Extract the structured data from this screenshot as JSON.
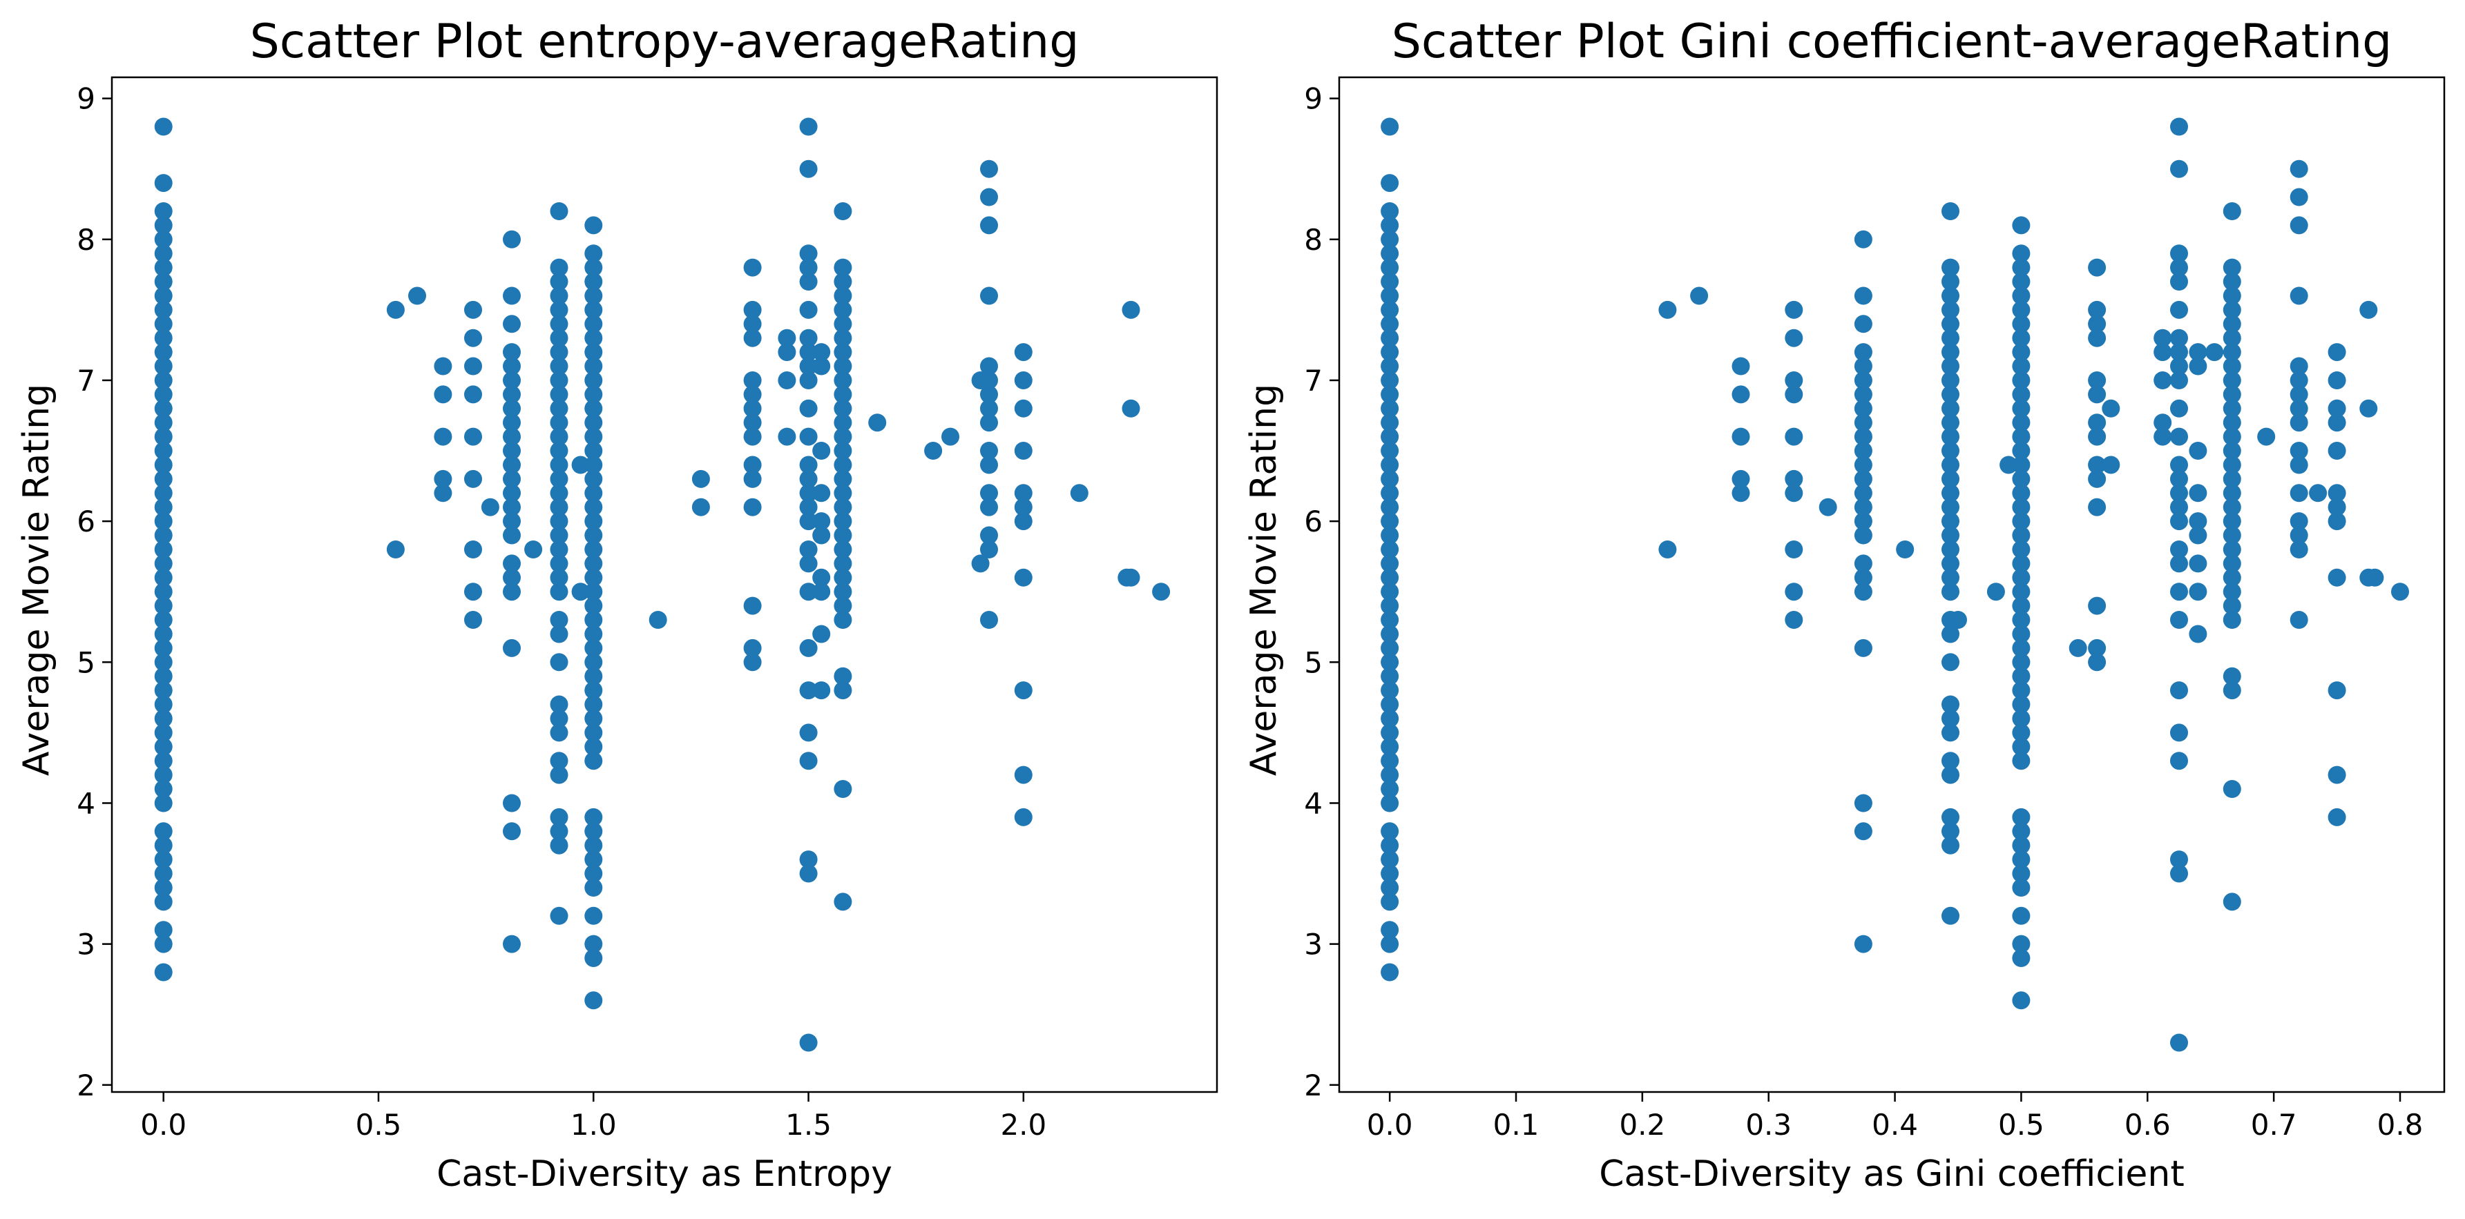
{
  "colors": {
    "marker": "#1f77b4",
    "axes": "#000000",
    "background": "#ffffff"
  },
  "chart_data": [
    {
      "type": "scatter",
      "title": "Scatter Plot entropy-averageRating",
      "xlabel": "Cast-Diversity as Entropy",
      "ylabel": "Average Movie Rating",
      "xlim": [
        -0.12,
        2.45
      ],
      "ylim": [
        1.95,
        9.15
      ],
      "xticks": [
        0.0,
        0.5,
        1.0,
        1.5,
        2.0
      ],
      "xtick_labels": [
        "0.0",
        "0.5",
        "1.0",
        "1.5",
        "2.0"
      ],
      "yticks": [
        2,
        3,
        4,
        5,
        6,
        7,
        8,
        9
      ],
      "ytick_labels": [
        "2",
        "3",
        "4",
        "5",
        "6",
        "7",
        "8",
        "9"
      ],
      "grid": false,
      "columns": [
        {
          "x": 0.0,
          "y": [
            2.8,
            3.0,
            3.1,
            3.3,
            3.4,
            3.5,
            3.6,
            3.7,
            3.8,
            4.0,
            4.1,
            4.2,
            4.3,
            4.4,
            4.5,
            4.6,
            4.7,
            4.8,
            4.9,
            5.0,
            5.1,
            5.2,
            5.3,
            5.4,
            5.5,
            5.6,
            5.7,
            5.8,
            5.9,
            6.0,
            6.1,
            6.2,
            6.3,
            6.4,
            6.5,
            6.6,
            6.7,
            6.8,
            6.9,
            7.0,
            7.1,
            7.2,
            7.3,
            7.4,
            7.5,
            7.6,
            7.7,
            7.8,
            7.9,
            8.0,
            8.1,
            8.2,
            8.4,
            8.8
          ]
        },
        {
          "x": 0.54,
          "y": [
            5.8,
            7.5
          ]
        },
        {
          "x": 0.59,
          "y": [
            7.6
          ]
        },
        {
          "x": 0.65,
          "y": [
            6.2,
            6.3,
            6.6,
            6.9,
            7.1
          ]
        },
        {
          "x": 0.72,
          "y": [
            5.3,
            5.5,
            5.8,
            6.3,
            6.6,
            6.9,
            7.1,
            7.3,
            7.5
          ]
        },
        {
          "x": 0.76,
          "y": [
            6.1
          ]
        },
        {
          "x": 0.81,
          "y": [
            3.0,
            3.8,
            4.0,
            5.1,
            5.5,
            5.6,
            5.7,
            5.9,
            6.0,
            6.1,
            6.2,
            6.3,
            6.4,
            6.5,
            6.6,
            6.7,
            6.8,
            6.9,
            7.0,
            7.1,
            7.2,
            7.4,
            7.6,
            8.0
          ]
        },
        {
          "x": 0.86,
          "y": [
            5.8
          ]
        },
        {
          "x": 0.92,
          "y": [
            3.2,
            3.7,
            3.8,
            3.9,
            4.2,
            4.3,
            4.5,
            4.6,
            4.7,
            5.0,
            5.2,
            5.3,
            5.5,
            5.6,
            5.7,
            5.8,
            5.9,
            6.0,
            6.1,
            6.2,
            6.3,
            6.4,
            6.5,
            6.6,
            6.7,
            6.8,
            6.9,
            7.0,
            7.1,
            7.2,
            7.3,
            7.4,
            7.5,
            7.6,
            7.7,
            7.8,
            8.2
          ]
        },
        {
          "x": 0.97,
          "y": [
            5.5,
            6.4
          ]
        },
        {
          "x": 1.0,
          "y": [
            2.6,
            2.9,
            3.0,
            3.2,
            3.4,
            3.5,
            3.6,
            3.7,
            3.8,
            3.9,
            4.3,
            4.4,
            4.5,
            4.6,
            4.7,
            4.8,
            4.9,
            5.0,
            5.1,
            5.2,
            5.3,
            5.4,
            5.5,
            5.6,
            5.7,
            5.8,
            5.9,
            6.0,
            6.1,
            6.2,
            6.3,
            6.4,
            6.5,
            6.6,
            6.7,
            6.8,
            6.9,
            7.0,
            7.1,
            7.2,
            7.3,
            7.4,
            7.5,
            7.6,
            7.7,
            7.8,
            7.9,
            8.1
          ]
        },
        {
          "x": 1.15,
          "y": [
            5.3
          ]
        },
        {
          "x": 1.25,
          "y": [
            6.1,
            6.3
          ]
        },
        {
          "x": 1.37,
          "y": [
            5.0,
            5.1,
            5.4,
            6.1,
            6.3,
            6.4,
            6.6,
            6.7,
            6.8,
            6.9,
            7.0,
            7.3,
            7.4,
            7.5,
            7.8
          ]
        },
        {
          "x": 1.45,
          "y": [
            6.6,
            7.0,
            7.2,
            7.3
          ]
        },
        {
          "x": 1.5,
          "y": [
            2.3,
            3.5,
            3.6,
            4.3,
            4.5,
            4.8,
            5.1,
            5.5,
            5.7,
            5.8,
            6.0,
            6.1,
            6.2,
            6.3,
            6.4,
            6.6,
            6.8,
            7.0,
            7.1,
            7.2,
            7.3,
            7.5,
            7.7,
            7.8,
            7.9,
            8.5,
            8.8
          ]
        },
        {
          "x": 1.53,
          "y": [
            4.8,
            5.2,
            5.5,
            5.6,
            5.9,
            6.0,
            6.2,
            6.5,
            7.1,
            7.2
          ]
        },
        {
          "x": 1.58,
          "y": [
            3.3,
            4.1,
            4.8,
            4.9,
            5.3,
            5.4,
            5.5,
            5.6,
            5.7,
            5.8,
            5.9,
            6.0,
            6.1,
            6.2,
            6.3,
            6.4,
            6.5,
            6.6,
            6.7,
            6.8,
            6.9,
            7.0,
            7.1,
            7.2,
            7.3,
            7.4,
            7.5,
            7.6,
            7.7,
            7.8,
            8.2
          ]
        },
        {
          "x": 1.66,
          "y": [
            6.7
          ]
        },
        {
          "x": 1.79,
          "y": [
            6.5
          ]
        },
        {
          "x": 1.83,
          "y": [
            6.6
          ]
        },
        {
          "x": 1.9,
          "y": [
            5.7,
            7.0
          ]
        },
        {
          "x": 1.92,
          "y": [
            5.3,
            5.8,
            5.9,
            6.1,
            6.2,
            6.4,
            6.5,
            6.7,
            6.8,
            6.9,
            7.0,
            7.1,
            7.6,
            8.1,
            8.3,
            8.5
          ]
        },
        {
          "x": 2.0,
          "y": [
            3.9,
            4.2,
            4.8,
            5.6,
            6.0,
            6.1,
            6.2,
            6.5,
            6.8,
            7.0,
            7.2
          ]
        },
        {
          "x": 2.13,
          "y": [
            6.2
          ]
        },
        {
          "x": 2.24,
          "y": [
            5.6
          ]
        },
        {
          "x": 2.25,
          "y": [
            5.6,
            6.8,
            7.5
          ]
        },
        {
          "x": 2.32,
          "y": [
            5.5
          ]
        }
      ]
    },
    {
      "type": "scatter",
      "title": "Scatter Plot Gini coefficient-averageRating",
      "xlabel": "Cast-Diversity as Gini coefficient",
      "ylabel": "Average Movie Rating",
      "xlim": [
        -0.04,
        0.835
      ],
      "ylim": [
        1.95,
        9.15
      ],
      "xticks": [
        0.0,
        0.1,
        0.2,
        0.3,
        0.4,
        0.5,
        0.6,
        0.7,
        0.8
      ],
      "xtick_labels": [
        "0.0",
        "0.1",
        "0.2",
        "0.3",
        "0.4",
        "0.5",
        "0.6",
        "0.7",
        "0.8"
      ],
      "yticks": [
        2,
        3,
        4,
        5,
        6,
        7,
        8,
        9
      ],
      "ytick_labels": [
        "2",
        "3",
        "4",
        "5",
        "6",
        "7",
        "8",
        "9"
      ],
      "grid": false,
      "columns": [
        {
          "x": 0.0,
          "y": [
            2.8,
            3.0,
            3.1,
            3.3,
            3.4,
            3.5,
            3.6,
            3.7,
            3.8,
            4.0,
            4.1,
            4.2,
            4.3,
            4.4,
            4.5,
            4.6,
            4.7,
            4.8,
            4.9,
            5.0,
            5.1,
            5.2,
            5.3,
            5.4,
            5.5,
            5.6,
            5.7,
            5.8,
            5.9,
            6.0,
            6.1,
            6.2,
            6.3,
            6.4,
            6.5,
            6.6,
            6.7,
            6.8,
            6.9,
            7.0,
            7.1,
            7.2,
            7.3,
            7.4,
            7.5,
            7.6,
            7.7,
            7.8,
            7.9,
            8.0,
            8.1,
            8.2,
            8.4,
            8.8
          ]
        },
        {
          "x": 0.22,
          "y": [
            5.8,
            7.5
          ]
        },
        {
          "x": 0.245,
          "y": [
            7.6
          ]
        },
        {
          "x": 0.278,
          "y": [
            6.2,
            6.3,
            6.6,
            6.9,
            7.1
          ]
        },
        {
          "x": 0.32,
          "y": [
            5.3,
            5.5,
            5.8,
            6.2,
            6.3,
            6.6,
            6.9,
            7.0,
            7.3,
            7.5
          ]
        },
        {
          "x": 0.347,
          "y": [
            6.1
          ]
        },
        {
          "x": 0.375,
          "y": [
            3.0,
            3.8,
            4.0,
            5.1,
            5.5,
            5.6,
            5.7,
            5.9,
            6.0,
            6.1,
            6.2,
            6.3,
            6.4,
            6.5,
            6.6,
            6.7,
            6.8,
            6.9,
            7.0,
            7.1,
            7.2,
            7.4,
            7.6,
            8.0
          ]
        },
        {
          "x": 0.408,
          "y": [
            5.8
          ]
        },
        {
          "x": 0.444,
          "y": [
            3.2,
            3.7,
            3.8,
            3.9,
            4.2,
            4.3,
            4.5,
            4.6,
            4.7,
            5.0,
            5.2,
            5.3,
            5.5,
            5.6,
            5.7,
            5.8,
            5.9,
            6.0,
            6.1,
            6.2,
            6.3,
            6.4,
            6.5,
            6.6,
            6.7,
            6.8,
            6.9,
            7.0,
            7.1,
            7.2,
            7.3,
            7.4,
            7.5,
            7.6,
            7.7,
            7.8,
            8.2
          ]
        },
        {
          "x": 0.45,
          "y": [
            5.3
          ]
        },
        {
          "x": 0.48,
          "y": [
            5.5
          ]
        },
        {
          "x": 0.49,
          "y": [
            6.4
          ]
        },
        {
          "x": 0.5,
          "y": [
            2.6,
            2.9,
            3.0,
            3.2,
            3.4,
            3.5,
            3.6,
            3.7,
            3.8,
            3.9,
            4.3,
            4.4,
            4.5,
            4.6,
            4.7,
            4.8,
            4.9,
            5.0,
            5.1,
            5.2,
            5.3,
            5.4,
            5.5,
            5.6,
            5.7,
            5.8,
            5.9,
            6.0,
            6.1,
            6.2,
            6.3,
            6.4,
            6.5,
            6.6,
            6.7,
            6.8,
            6.9,
            7.0,
            7.1,
            7.2,
            7.3,
            7.4,
            7.5,
            7.6,
            7.7,
            7.8,
            7.9,
            8.1
          ]
        },
        {
          "x": 0.545,
          "y": [
            5.1
          ]
        },
        {
          "x": 0.56,
          "y": [
            5.0,
            5.1,
            5.4,
            6.1,
            6.3,
            6.4,
            6.6,
            6.7,
            6.9,
            7.0,
            7.3,
            7.4,
            7.5,
            7.8
          ]
        },
        {
          "x": 0.571,
          "y": [
            6.4,
            6.8
          ]
        },
        {
          "x": 0.612,
          "y": [
            6.6,
            6.7,
            7.0,
            7.2,
            7.3
          ]
        },
        {
          "x": 0.625,
          "y": [
            2.3,
            3.5,
            3.6,
            4.3,
            4.5,
            4.8,
            5.3,
            5.5,
            5.7,
            5.8,
            6.0,
            6.1,
            6.2,
            6.3,
            6.4,
            6.6,
            6.8,
            7.0,
            7.1,
            7.2,
            7.3,
            7.5,
            7.7,
            7.8,
            7.9,
            8.5,
            8.8
          ]
        },
        {
          "x": 0.64,
          "y": [
            5.2,
            5.5,
            5.7,
            5.9,
            6.0,
            6.2,
            6.5,
            7.1,
            7.2
          ]
        },
        {
          "x": 0.653,
          "y": [
            7.2
          ]
        },
        {
          "x": 0.667,
          "y": [
            3.3,
            4.1,
            4.8,
            4.9,
            5.3,
            5.4,
            5.5,
            5.6,
            5.7,
            5.8,
            5.9,
            6.0,
            6.1,
            6.2,
            6.3,
            6.4,
            6.5,
            6.6,
            6.7,
            6.8,
            6.9,
            7.0,
            7.1,
            7.2,
            7.3,
            7.4,
            7.5,
            7.6,
            7.7,
            7.8,
            8.2
          ]
        },
        {
          "x": 0.694,
          "y": [
            6.6
          ]
        },
        {
          "x": 0.72,
          "y": [
            5.3,
            5.8,
            5.9,
            6.0,
            6.2,
            6.4,
            6.5,
            6.7,
            6.8,
            6.9,
            7.0,
            7.1,
            7.6,
            8.1,
            8.3,
            8.5
          ]
        },
        {
          "x": 0.735,
          "y": [
            6.2
          ]
        },
        {
          "x": 0.75,
          "y": [
            3.9,
            4.2,
            4.8,
            5.6,
            6.0,
            6.1,
            6.2,
            6.5,
            6.7,
            6.8,
            7.0,
            7.2
          ]
        },
        {
          "x": 0.775,
          "y": [
            5.6,
            6.8,
            7.5
          ]
        },
        {
          "x": 0.78,
          "y": [
            5.6
          ]
        },
        {
          "x": 0.8,
          "y": [
            5.5
          ]
        }
      ]
    }
  ]
}
